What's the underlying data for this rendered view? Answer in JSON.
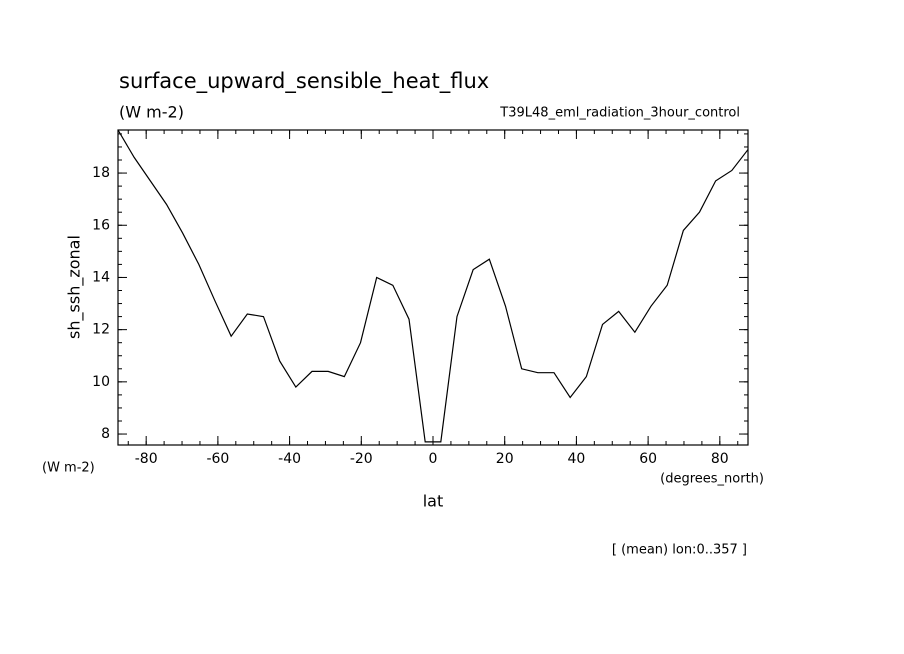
{
  "chart_data": {
    "type": "line",
    "title": "surface_upward_sensible_heat_flux",
    "units": "(W m-2)",
    "dataset": "T39L48_eml_radiation_3hour_control",
    "y_label": "sh_ssh_zonal",
    "y_units": "(W m-2)",
    "x_label": "lat",
    "x_units": "(degrees_north)",
    "footnote": "[ (mean) lon:0..357 ]",
    "x": [
      -87.86,
      -83.35,
      -78.84,
      -74.33,
      -69.83,
      -65.32,
      -60.81,
      -56.3,
      -51.79,
      -47.28,
      -42.77,
      -38.26,
      -33.75,
      -29.24,
      -24.73,
      -20.22,
      -15.71,
      -11.2,
      -6.69,
      -2.18,
      2.18,
      6.69,
      11.2,
      15.71,
      20.22,
      24.73,
      29.24,
      33.75,
      38.26,
      42.77,
      47.28,
      51.79,
      56.3,
      60.81,
      65.32,
      69.83,
      74.33,
      78.84,
      83.35,
      87.86
    ],
    "series": [
      {
        "color": "#000000",
        "values": [
          19.65,
          18.6,
          17.7,
          16.8,
          15.7,
          14.5,
          13.1,
          11.75,
          12.6,
          12.5,
          10.8,
          9.8,
          10.4,
          10.4,
          10.2,
          11.5,
          14.0,
          13.7,
          12.4,
          7.7,
          7.7,
          12.5,
          14.3,
          14.7,
          12.9,
          10.5,
          10.35,
          10.35,
          9.4,
          10.2,
          12.2,
          12.7,
          11.9,
          12.9,
          13.7,
          15.8,
          16.5,
          17.7,
          18.1,
          18.9
        ]
      }
    ],
    "xlim": [
      -87.86,
      87.86
    ],
    "ylim": [
      7.58,
      19.65
    ],
    "xticks": [
      -80,
      -60,
      -40,
      -20,
      0,
      20,
      40,
      60,
      80
    ],
    "yticks": [
      8,
      10,
      12,
      14,
      16,
      18
    ]
  }
}
